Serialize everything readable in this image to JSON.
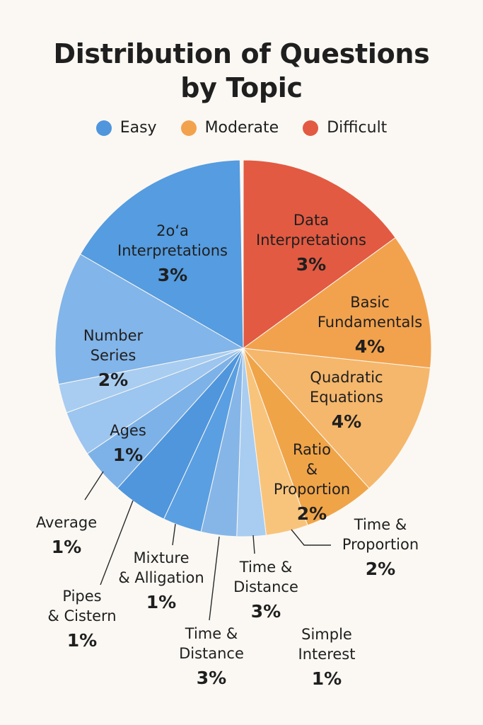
{
  "chart_data": {
    "type": "pie",
    "title_lines": [
      "Distribution of Questions",
      "by Topic"
    ],
    "legend": [
      {
        "label": "Easy",
        "color": "#4f96dd"
      },
      {
        "label": "Moderate",
        "color": "#f2a24d"
      },
      {
        "label": "Difficult",
        "color": "#e25a42"
      }
    ],
    "slices": [
      {
        "label_lines": [
          "Data",
          "Interpretations"
        ],
        "value_label": "3%",
        "value": 3,
        "sweep_deg": 54,
        "color": "#e25a42",
        "difficulty": "Difficult"
      },
      {
        "label_lines": [
          "Basic",
          "Fundamentals"
        ],
        "value_label": "4%",
        "value": 4,
        "sweep_deg": 42,
        "color": "#f2a24d",
        "difficulty": "Moderate"
      },
      {
        "label_lines": [
          "Quadratic",
          "Equations"
        ],
        "value_label": "4%",
        "value": 4,
        "sweep_deg": 42,
        "color": "#f5b76c",
        "difficulty": "Moderate"
      },
      {
        "label_lines": [
          "Ratio",
          "&",
          "Proportion"
        ],
        "value_label": "2%",
        "value": 2,
        "sweep_deg": 22,
        "color": "#f0a448",
        "difficulty": "Moderate"
      },
      {
        "label_lines": [
          "Time &",
          "Proportion"
        ],
        "value_label": "2%",
        "value": 2,
        "sweep_deg": 13,
        "color": "#f8c47c",
        "difficulty": "Moderate"
      },
      {
        "label_lines": [
          "Simple",
          "Interest"
        ],
        "value_label": "1%",
        "value": 1,
        "sweep_deg": 9,
        "color": "#a8cdf1",
        "difficulty": "Easy"
      },
      {
        "label_lines": [
          "Time &",
          "Distance"
        ],
        "value_label": "3%",
        "value": 3,
        "sweep_deg": 11,
        "color": "#86b6e8",
        "difficulty": "Easy"
      },
      {
        "label_lines": [
          "Time &",
          "Distance"
        ],
        "value_label": "3%",
        "value": 3,
        "sweep_deg": 12,
        "color": "#5a9fe2",
        "difficulty": "Easy"
      },
      {
        "label_lines": [
          "Mixture",
          "& Alligation"
        ],
        "value_label": "1%",
        "value": 1,
        "sweep_deg": 17,
        "color": "#4f96dd",
        "difficulty": "Easy"
      },
      {
        "label_lines": [
          "Pipes",
          "& Cistern"
        ],
        "value_label": "1%",
        "value": 1,
        "sweep_deg": 14,
        "color": "#7db2e8",
        "difficulty": "Easy"
      },
      {
        "label_lines": [
          "Average"
        ],
        "value_label": "1%",
        "value": 1,
        "sweep_deg": 14,
        "color": "#9cc5ef",
        "difficulty": "Easy"
      },
      {
        "label_lines": [
          "Ages"
        ],
        "value_label": "1%",
        "value": 1,
        "sweep_deg": 9,
        "color": "#a8cdf1",
        "difficulty": "Easy"
      },
      {
        "label_lines": [
          "Number",
          "Series"
        ],
        "value_label": "2%",
        "value": 2,
        "sweep_deg": 41,
        "color": "#82b5e9",
        "difficulty": "Easy"
      },
      {
        "label_lines": [
          "2o‘a",
          "Interpretations"
        ],
        "value_label": "3%",
        "value": 3,
        "sweep_deg": 59,
        "color": "#559ce0",
        "difficulty": "Easy"
      }
    ]
  }
}
